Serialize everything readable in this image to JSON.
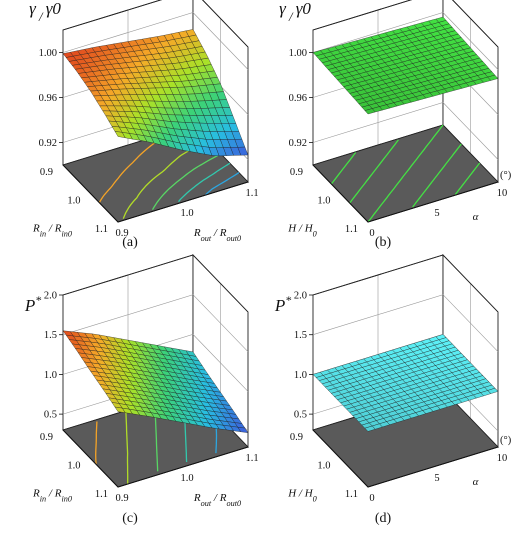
{
  "chart_data": [
    {
      "type": "surface",
      "caption": "(a)",
      "zlabel": "γ / γ0",
      "zlabel_parts": [
        "γ",
        " / ",
        "γ",
        "0"
      ],
      "xlabel_parts": [
        "R",
        "in",
        " / ",
        "R",
        "in0"
      ],
      "ylabel_parts": [
        "R",
        "out",
        " / ",
        "R",
        "out0"
      ],
      "x_ticks": [
        "0.9",
        "1.0",
        "1.1"
      ],
      "y_ticks": [
        "0.9",
        "1.0",
        "1.1"
      ],
      "z_ticks": [
        "1.00",
        "0.96",
        "0.92"
      ],
      "x_range": [
        0.9,
        1.1
      ],
      "y_range": [
        0.9,
        1.1
      ],
      "z_range": [
        0.9,
        1.02
      ],
      "grid_z": [
        [
          0.999,
          0.996,
          0.992,
          0.988,
          0.985
        ],
        [
          0.996,
          0.991,
          0.985,
          0.979,
          0.975
        ],
        [
          0.991,
          0.984,
          0.976,
          0.968,
          0.962
        ],
        [
          0.984,
          0.974,
          0.962,
          0.952,
          0.943
        ],
        [
          0.976,
          0.962,
          0.946,
          0.932,
          0.924
        ]
      ],
      "color_scale": "rainbow",
      "contours": "floor"
    },
    {
      "type": "surface",
      "caption": "(b)",
      "zlabel": "γ / γ0",
      "zlabel_parts": [
        "γ",
        " / ",
        "γ",
        "0"
      ],
      "xlabel_parts": [
        "H",
        "",
        " / ",
        "H",
        "0"
      ],
      "ylabel_parts": [
        "α",
        "",
        "",
        "",
        ""
      ],
      "y_unit": "(°)",
      "x_ticks": [
        "0.9",
        "1.0",
        "1.1"
      ],
      "y_ticks": [
        "0",
        "5",
        "10"
      ],
      "z_ticks": [
        "1.00",
        "0.96",
        "0.92"
      ],
      "x_range": [
        0.9,
        1.1
      ],
      "y_range": [
        0,
        10
      ],
      "z_range": [
        0.9,
        1.02
      ],
      "grid_z": [
        [
          1.0,
          0.999,
          0.998,
          0.997,
          0.996
        ],
        [
          0.999,
          0.998,
          0.997,
          0.996,
          0.995
        ],
        [
          0.998,
          0.997,
          0.996,
          0.995,
          0.994
        ],
        [
          0.997,
          0.996,
          0.995,
          0.994,
          0.993
        ],
        [
          0.996,
          0.995,
          0.994,
          0.993,
          0.992
        ]
      ],
      "surface_color": "#3ed23e",
      "contours": "floor"
    },
    {
      "type": "surface",
      "caption": "(c)",
      "zlabel": "P*",
      "zlabel_parts": [
        "P",
        "*"
      ],
      "xlabel_parts": [
        "R",
        "in",
        " / ",
        "R",
        "in0"
      ],
      "ylabel_parts": [
        "R",
        "out",
        " / ",
        "R",
        "out0"
      ],
      "x_ticks": [
        "0.9",
        "1.0",
        "1.1"
      ],
      "y_ticks": [
        "0.9",
        "1.0",
        "1.1"
      ],
      "z_ticks": [
        "2.0",
        "1.5",
        "1.0",
        "0.5"
      ],
      "x_range": [
        0.9,
        1.1
      ],
      "y_range": [
        0.9,
        1.1
      ],
      "z_range": [
        0.3,
        2.0
      ],
      "grid_z": [
        [
          1.55,
          1.38,
          1.18,
          0.98,
          0.78
        ],
        [
          1.48,
          1.3,
          1.1,
          0.9,
          0.7
        ],
        [
          1.4,
          1.22,
          1.02,
          0.82,
          0.63
        ],
        [
          1.33,
          1.14,
          0.94,
          0.74,
          0.56
        ],
        [
          1.25,
          1.06,
          0.86,
          0.66,
          0.48
        ]
      ],
      "color_scale": "rainbow",
      "contours": "floor"
    },
    {
      "type": "surface",
      "caption": "(d)",
      "zlabel": "P*",
      "zlabel_parts": [
        "P",
        "*"
      ],
      "xlabel_parts": [
        "H",
        "",
        " / ",
        "H",
        "0"
      ],
      "ylabel_parts": [
        "α",
        "",
        "",
        "",
        ""
      ],
      "y_unit": "(°)",
      "x_ticks": [
        "0.9",
        "1.0",
        "1.1"
      ],
      "y_ticks": [
        "0",
        "5",
        "10"
      ],
      "z_ticks": [
        "2.0",
        "1.5",
        "1.0",
        "0.5"
      ],
      "x_range": [
        0.9,
        1.1
      ],
      "y_range": [
        0,
        10
      ],
      "z_range": [
        0.3,
        2.0
      ],
      "grid_z": [
        [
          1.0,
          1.0,
          1.0,
          1.0,
          1.0
        ],
        [
          1.0,
          1.0,
          1.0,
          1.0,
          1.0
        ],
        [
          1.0,
          1.0,
          1.0,
          1.0,
          1.0
        ],
        [
          1.0,
          1.0,
          1.0,
          1.0,
          1.0
        ],
        [
          1.0,
          1.0,
          1.0,
          1.0,
          1.0
        ]
      ],
      "surface_color": "#56e0e6",
      "contours": "floor"
    }
  ]
}
